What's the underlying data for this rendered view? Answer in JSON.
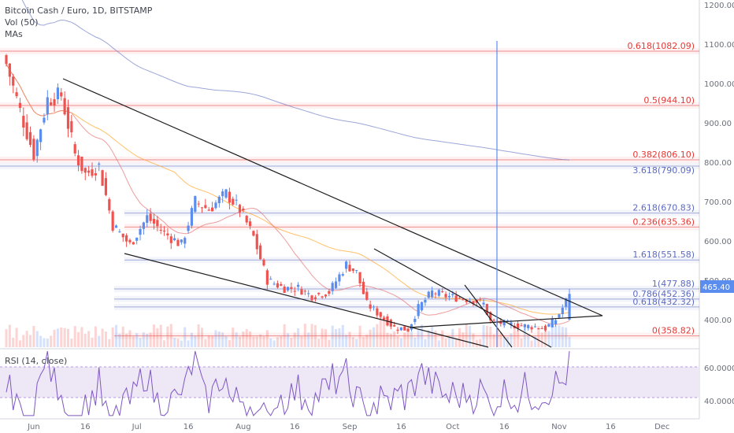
{
  "header": {
    "title": "Bitcoin Cash / Euro, 1D, BITSTAMP",
    "vol_label": "Vol (50)",
    "mas_label": "MAs"
  },
  "price_axis": {
    "ticks": [
      "1200.00",
      "1100.00",
      "1000.00",
      "900.00",
      "800.00",
      "700.00",
      "600.00",
      "500.00",
      "400.00"
    ],
    "last_price": "465.40"
  },
  "rsi": {
    "label": "RSI (14, close)",
    "ticks": [
      "60.0000",
      "40.0000"
    ]
  },
  "time_axis": {
    "labels": [
      "Jun",
      "16",
      "Jul",
      "16",
      "Aug",
      "16",
      "Sep",
      "16",
      "Oct",
      "16",
      "Nov",
      "16",
      "Dec"
    ]
  },
  "fib_levels": [
    {
      "label": "0.618(1082.09)",
      "value": 1082.09,
      "color": "#e53935"
    },
    {
      "label": "0.5(944.10)",
      "value": 944.1,
      "color": "#e53935"
    },
    {
      "label": "0.382(806.10)",
      "value": 806.1,
      "color": "#e53935"
    },
    {
      "label": "3.618(790.09)",
      "value": 790.09,
      "color": "#5c6bc0"
    },
    {
      "label": "2.618(670.83)",
      "value": 670.83,
      "color": "#5c6bc0"
    },
    {
      "label": "0.236(635.36)",
      "value": 635.36,
      "color": "#e53935"
    },
    {
      "label": "1.618(551.58)",
      "value": 551.58,
      "color": "#5c6bc0"
    },
    {
      "label": "1(477.88)",
      "value": 477.88,
      "color": "#5c6bc0"
    },
    {
      "label": "0.786(452.36)",
      "value": 452.36,
      "color": "#5c6bc0"
    },
    {
      "label": "0.618(432.32)",
      "value": 432.32,
      "color": "#5c6bc0"
    },
    {
      "label": "0(358.82)",
      "value": 358.82,
      "color": "#e53935"
    }
  ],
  "colors": {
    "up": "#5b8def",
    "down": "#ef5350",
    "rsi_line": "#7e57c2",
    "rsi_band": "#ede7f6",
    "ma_long": "#5c6bc0",
    "ma_mid": "#ffa726",
    "ma_short": "#e57373"
  },
  "chart_data": {
    "type": "candlestick",
    "title": "Bitcoin Cash / Euro, 1D, BITSTAMP",
    "ylim": [
      330,
      1200
    ],
    "x_labels": [
      "Jun",
      "16",
      "Jul",
      "16",
      "Aug",
      "16",
      "Sep",
      "16",
      "Oct",
      "16",
      "Nov",
      "16",
      "Dec"
    ],
    "close_anchors": [
      {
        "date": "2018-05-24",
        "close": 1050
      },
      {
        "date": "2018-05-28",
        "close": 930
      },
      {
        "date": "2018-06-01",
        "close": 820
      },
      {
        "date": "2018-06-05",
        "close": 960
      },
      {
        "date": "2018-06-09",
        "close": 970
      },
      {
        "date": "2018-06-13",
        "close": 820
      },
      {
        "date": "2018-06-16",
        "close": 770
      },
      {
        "date": "2018-06-20",
        "close": 790
      },
      {
        "date": "2018-06-24",
        "close": 640
      },
      {
        "date": "2018-06-29",
        "close": 590
      },
      {
        "date": "2018-07-04",
        "close": 660
      },
      {
        "date": "2018-07-09",
        "close": 620
      },
      {
        "date": "2018-07-14",
        "close": 590
      },
      {
        "date": "2018-07-18",
        "close": 700
      },
      {
        "date": "2018-07-22",
        "close": 680
      },
      {
        "date": "2018-07-27",
        "close": 720
      },
      {
        "date": "2018-07-31",
        "close": 680
      },
      {
        "date": "2018-08-04",
        "close": 610
      },
      {
        "date": "2018-08-08",
        "close": 500
      },
      {
        "date": "2018-08-13",
        "close": 480
      },
      {
        "date": "2018-08-17",
        "close": 480
      },
      {
        "date": "2018-08-21",
        "close": 460
      },
      {
        "date": "2018-08-26",
        "close": 470
      },
      {
        "date": "2018-08-31",
        "close": 540
      },
      {
        "date": "2018-09-03",
        "close": 520
      },
      {
        "date": "2018-09-06",
        "close": 440
      },
      {
        "date": "2018-09-10",
        "close": 410
      },
      {
        "date": "2018-09-14",
        "close": 380
      },
      {
        "date": "2018-09-18",
        "close": 375
      },
      {
        "date": "2018-09-21",
        "close": 430
      },
      {
        "date": "2018-09-25",
        "close": 470
      },
      {
        "date": "2018-09-29",
        "close": 460
      },
      {
        "date": "2018-10-03",
        "close": 455
      },
      {
        "date": "2018-10-07",
        "close": 450
      },
      {
        "date": "2018-10-10",
        "close": 440
      },
      {
        "date": "2018-10-12",
        "close": 395
      },
      {
        "date": "2018-10-16",
        "close": 390
      },
      {
        "date": "2018-10-20",
        "close": 385
      },
      {
        "date": "2018-10-25",
        "close": 382
      },
      {
        "date": "2018-10-28",
        "close": 378
      },
      {
        "date": "2018-10-31",
        "close": 400
      },
      {
        "date": "2018-11-02",
        "close": 430
      },
      {
        "date": "2018-11-04",
        "close": 465.4
      }
    ],
    "rsi_ylim": [
      30,
      70
    ],
    "last_price": 465.4
  }
}
